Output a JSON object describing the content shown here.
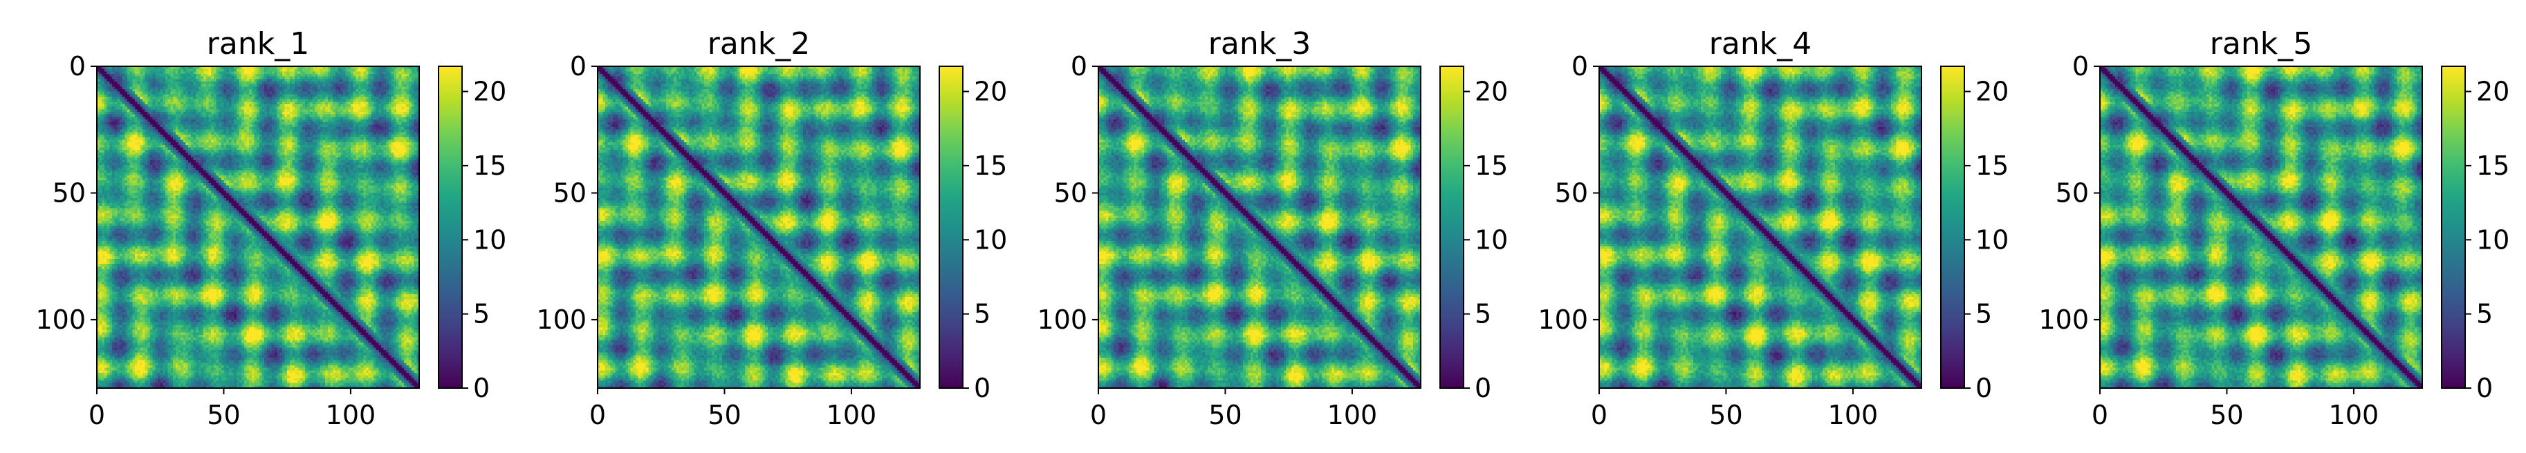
{
  "chart_data": [
    {
      "type": "heatmap",
      "title": "rank_1",
      "seed": 11,
      "n": 127,
      "x_ticks": [
        0,
        50,
        100
      ],
      "y_ticks": [
        0,
        50,
        100
      ],
      "xlim": [
        0,
        127
      ],
      "ylim": [
        127,
        0
      ],
      "colorbar": {
        "ticks": [
          0,
          5,
          10,
          15,
          20
        ],
        "range": [
          0,
          21.7
        ],
        "colormap": "viridis"
      }
    },
    {
      "type": "heatmap",
      "title": "rank_2",
      "seed": 23,
      "n": 127,
      "x_ticks": [
        0,
        50,
        100
      ],
      "y_ticks": [
        0,
        50,
        100
      ],
      "xlim": [
        0,
        127
      ],
      "ylim": [
        127,
        0
      ],
      "colorbar": {
        "ticks": [
          0,
          5,
          10,
          15,
          20
        ],
        "range": [
          0,
          21.7
        ],
        "colormap": "viridis"
      }
    },
    {
      "type": "heatmap",
      "title": "rank_3",
      "seed": 37,
      "n": 127,
      "x_ticks": [
        0,
        50,
        100
      ],
      "y_ticks": [
        0,
        50,
        100
      ],
      "xlim": [
        0,
        127
      ],
      "ylim": [
        127,
        0
      ],
      "colorbar": {
        "ticks": [
          0,
          5,
          10,
          15,
          20
        ],
        "range": [
          0,
          21.7
        ],
        "colormap": "viridis"
      }
    },
    {
      "type": "heatmap",
      "title": "rank_4",
      "seed": 41,
      "n": 127,
      "x_ticks": [
        0,
        50,
        100
      ],
      "y_ticks": [
        0,
        50,
        100
      ],
      "xlim": [
        0,
        127
      ],
      "ylim": [
        127,
        0
      ],
      "colorbar": {
        "ticks": [
          0,
          5,
          10,
          15,
          20
        ],
        "range": [
          0,
          21.7
        ],
        "colormap": "viridis"
      }
    },
    {
      "type": "heatmap",
      "title": "rank_5",
      "seed": 53,
      "n": 127,
      "x_ticks": [
        0,
        50,
        100
      ],
      "y_ticks": [
        0,
        50,
        100
      ],
      "xlim": [
        0,
        127
      ],
      "ylim": [
        127,
        0
      ],
      "colorbar": {
        "ticks": [
          0,
          5,
          10,
          15,
          20
        ],
        "range": [
          0,
          21.7
        ],
        "colormap": "viridis"
      }
    }
  ]
}
